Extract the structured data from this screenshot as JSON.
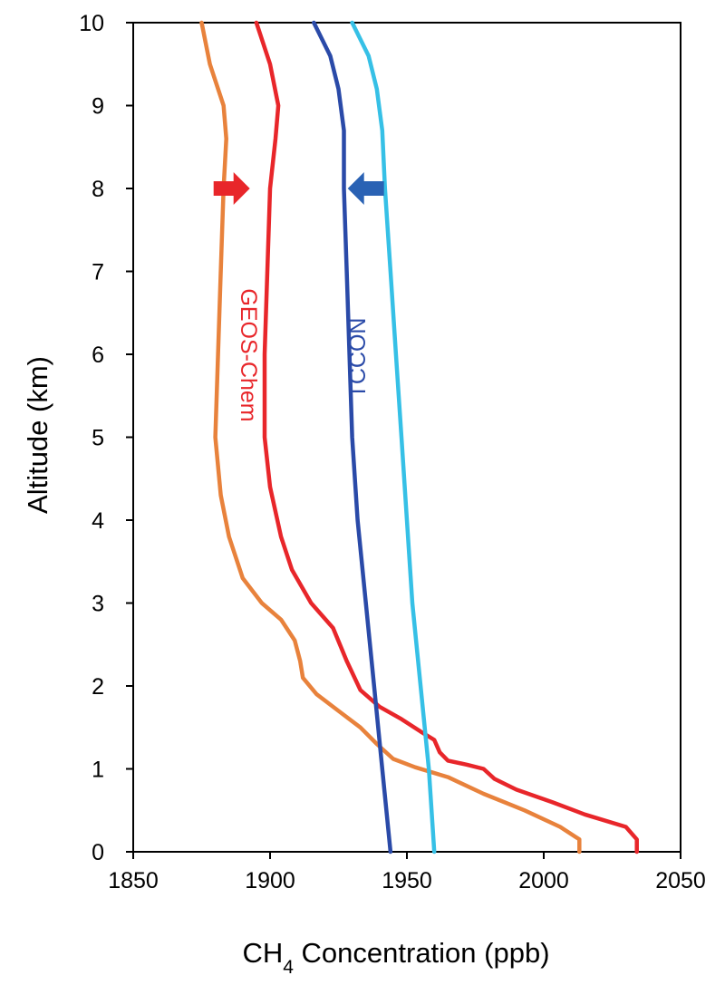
{
  "chart_data": {
    "type": "line",
    "title": "",
    "xlabel_main": "CH",
    "xlabel_sub": "4",
    "xlabel_tail": " Concentration (ppb)",
    "ylabel": "Altitude (km)",
    "xlim": [
      1850,
      2050
    ],
    "ylim": [
      0,
      10
    ],
    "x_ticks": [
      "1850",
      "1900",
      "1950",
      "2000",
      "2050"
    ],
    "y_ticks": [
      "0",
      "1",
      "2",
      "3",
      "4",
      "5",
      "6",
      "7",
      "8",
      "9",
      "10"
    ],
    "grid": false,
    "series": [
      {
        "name": "",
        "color": "#e8823c",
        "points": [
          [
            2013,
            0
          ],
          [
            2013,
            0.15
          ],
          [
            2006,
            0.3
          ],
          [
            1993,
            0.5
          ],
          [
            1978,
            0.7
          ],
          [
            1965,
            0.9
          ],
          [
            1953,
            1.02
          ],
          [
            1945,
            1.12
          ],
          [
            1939,
            1.3
          ],
          [
            1933,
            1.5
          ],
          [
            1925,
            1.7
          ],
          [
            1917,
            1.9
          ],
          [
            1912,
            2.1
          ],
          [
            1911,
            2.3
          ],
          [
            1909,
            2.55
          ],
          [
            1904,
            2.8
          ],
          [
            1897,
            3.0
          ],
          [
            1890,
            3.3
          ],
          [
            1885,
            3.8
          ],
          [
            1882,
            4.3
          ],
          [
            1880,
            5.0
          ],
          [
            1881,
            6.0
          ],
          [
            1882,
            7.0
          ],
          [
            1883,
            8.0
          ],
          [
            1884,
            8.6
          ],
          [
            1883,
            9.0
          ],
          [
            1878,
            9.5
          ],
          [
            1875,
            10.0
          ]
        ]
      },
      {
        "name": "GEOS-Chem",
        "color": "#e8262a",
        "points": [
          [
            2034,
            0
          ],
          [
            2034,
            0.15
          ],
          [
            2030,
            0.3
          ],
          [
            2015,
            0.45
          ],
          [
            2003,
            0.6
          ],
          [
            1990,
            0.75
          ],
          [
            1982,
            0.88
          ],
          [
            1978,
            1.0
          ],
          [
            1972,
            1.05
          ],
          [
            1965,
            1.1
          ],
          [
            1962,
            1.2
          ],
          [
            1960,
            1.35
          ],
          [
            1955,
            1.45
          ],
          [
            1948,
            1.6
          ],
          [
            1940,
            1.75
          ],
          [
            1933,
            1.95
          ],
          [
            1928,
            2.3
          ],
          [
            1923,
            2.7
          ],
          [
            1915,
            3.0
          ],
          [
            1908,
            3.4
          ],
          [
            1904,
            3.8
          ],
          [
            1900,
            4.4
          ],
          [
            1898,
            5.0
          ],
          [
            1898,
            6.0
          ],
          [
            1899,
            7.0
          ],
          [
            1900,
            8.0
          ],
          [
            1902,
            8.6
          ],
          [
            1903,
            9.0
          ],
          [
            1900,
            9.5
          ],
          [
            1895,
            10.0
          ]
        ]
      },
      {
        "name": "TCCON",
        "color": "#2a4aa8",
        "points": [
          [
            1944,
            0
          ],
          [
            1941,
            1.0
          ],
          [
            1938,
            2.0
          ],
          [
            1935,
            3.0
          ],
          [
            1932,
            4.0
          ],
          [
            1930,
            5.0
          ],
          [
            1929,
            6.0
          ],
          [
            1928,
            7.0
          ],
          [
            1927,
            8.0
          ],
          [
            1927,
            8.7
          ],
          [
            1925,
            9.2
          ],
          [
            1922,
            9.6
          ],
          [
            1916,
            10.0
          ]
        ]
      },
      {
        "name": "",
        "color": "#36c0e6",
        "points": [
          [
            1960,
            0
          ],
          [
            1958,
            1.0
          ],
          [
            1955,
            2.0
          ],
          [
            1952,
            3.0
          ],
          [
            1950,
            4.0
          ],
          [
            1948,
            5.0
          ],
          [
            1946,
            6.0
          ],
          [
            1944,
            7.0
          ],
          [
            1942,
            8.0
          ],
          [
            1941,
            8.7
          ],
          [
            1939,
            9.2
          ],
          [
            1936,
            9.6
          ],
          [
            1930,
            10.0
          ]
        ]
      }
    ],
    "annotations": {
      "geos_label": "GEOS-Chem",
      "tccon_label": "TCCON",
      "red_arrow": {
        "x": 1886,
        "y": 8.0,
        "direction": "right",
        "color": "#e8262a"
      },
      "blue_arrow": {
        "x": 1935,
        "y": 8.0,
        "direction": "left",
        "color": "#2a62b4"
      }
    }
  }
}
